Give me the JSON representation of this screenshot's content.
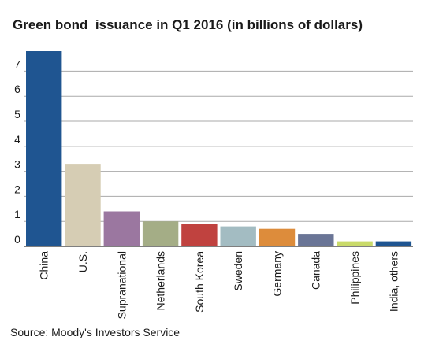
{
  "chart_data": {
    "type": "bar",
    "title": "Green bond  issuance in Q1 2016 (in billions of dollars)",
    "source": "Source: Moody's Investors Service",
    "categories": [
      "China",
      "U.S.",
      "Supranational",
      "Netherlands",
      "South Korea",
      "Sweden",
      "Germany",
      "Canada",
      "Philippines",
      "India, others"
    ],
    "values": [
      7.8,
      3.3,
      1.4,
      1.0,
      0.9,
      0.8,
      0.7,
      0.5,
      0.2,
      0.2
    ],
    "colors": [
      "#1f5591",
      "#d6cdb4",
      "#9b77a0",
      "#a4ad86",
      "#c0423f",
      "#a3bcc2",
      "#dd8c3b",
      "#6a7596",
      "#c9da6a",
      "#1f5591"
    ],
    "yticks": [
      0,
      1,
      2,
      3,
      4,
      5,
      6,
      7
    ],
    "ylim": [
      0,
      7.8
    ],
    "grid": true,
    "xlabel": "",
    "ylabel": ""
  }
}
